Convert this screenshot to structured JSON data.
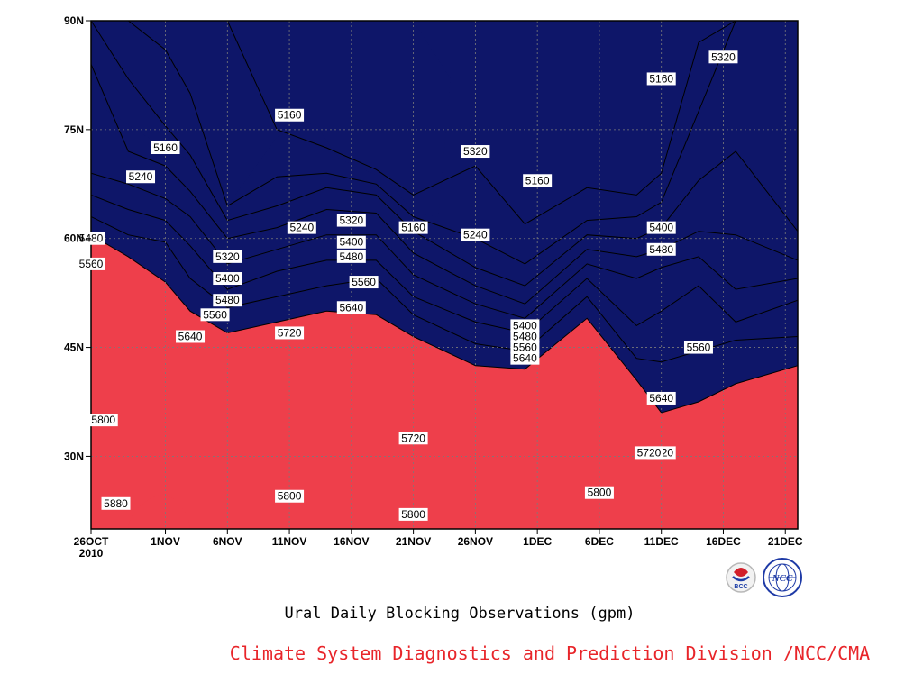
{
  "chart_data": {
    "type": "heatmap",
    "title": "Ural Daily Blocking Observations (gpm)",
    "credit": "Climate System Diagnostics and Prediction Division /NCC/CMA",
    "x_ticks": [
      "26OCT",
      "1NOV",
      "6NOV",
      "11NOV",
      "16NOV",
      "21NOV",
      "26NOV",
      "1DEC",
      "6DEC",
      "11DEC",
      "16DEC",
      "21DEC"
    ],
    "x_year": "2010",
    "y_ticks": [
      "30N",
      "45N",
      "60N",
      "75N",
      "90N"
    ],
    "xlim": [
      "2010-10-26",
      "2010-12-22"
    ],
    "ylim": [
      20,
      90
    ],
    "grid": true,
    "contour_levels": [
      5160,
      5240,
      5320,
      5400,
      5480,
      5560,
      5640,
      5720,
      5800,
      5880
    ],
    "level_colors": [
      "#0e1669",
      "#1a23e2",
      "#4d5ce8",
      "#5c8ce2",
      "#62bff7",
      "#fbfb7a",
      "#fde3a4",
      "#fca76b",
      "#fa7747",
      "#f56f7d",
      "#ee3f4b"
    ],
    "contour_labels": [
      "5160",
      "5160",
      "5240",
      "5480",
      "5560",
      "5320",
      "5400",
      "5480",
      "5560",
      "5640",
      "5720",
      "5800",
      "5880",
      "5160",
      "5240",
      "5320",
      "5400",
      "5480",
      "5560",
      "5640",
      "5720",
      "5800",
      "5160",
      "5240",
      "5320",
      "5400",
      "5480",
      "5560",
      "5640",
      "5720",
      "5800",
      "5160",
      "5320",
      "5400",
      "5480",
      "5560",
      "5640",
      "5720",
      "5800"
    ],
    "profiles": [
      {
        "date": "2010-10-26",
        "lat": [
          60.5,
          63.0,
          66.0,
          69.0,
          84.0,
          90.0,
          90.0,
          90.0,
          90.0,
          90.0
        ]
      },
      {
        "date": "2010-10-29",
        "lat": [
          57.5,
          60.5,
          64.0,
          67.5,
          72.0,
          82.0,
          90.0,
          90.0,
          90.0,
          90.0
        ]
      },
      {
        "date": "2010-11-01",
        "lat": [
          54.0,
          59.5,
          62.5,
          65.5,
          70.0,
          75.5,
          86.0,
          90.0,
          90.0,
          90.0
        ]
      },
      {
        "date": "2010-11-03",
        "lat": [
          50.0,
          54.5,
          59.0,
          63.0,
          66.5,
          71.5,
          80.0,
          90.0,
          90.0,
          90.0
        ]
      },
      {
        "date": "2010-11-06",
        "lat": [
          47.0,
          50.5,
          53.0,
          56.5,
          60.0,
          62.5,
          64.5,
          90.0,
          90.0,
          90.0
        ]
      },
      {
        "date": "2010-11-10",
        "lat": [
          48.5,
          52.0,
          55.5,
          58.5,
          61.5,
          64.5,
          68.5,
          75.0,
          90.0,
          90.0
        ]
      },
      {
        "date": "2010-11-14",
        "lat": [
          50.0,
          53.5,
          57.0,
          60.5,
          64.0,
          67.0,
          69.0,
          72.5,
          90.0,
          90.0
        ]
      },
      {
        "date": "2010-11-18",
        "lat": [
          49.5,
          54.5,
          57.0,
          60.5,
          63.5,
          66.0,
          67.5,
          69.5,
          90.0,
          90.0
        ]
      },
      {
        "date": "2010-11-21",
        "lat": [
          46.5,
          49.5,
          52.0,
          55.0,
          58.0,
          61.0,
          63.0,
          66.0,
          90.0,
          90.0
        ]
      },
      {
        "date": "2010-11-26",
        "lat": [
          42.5,
          45.5,
          48.5,
          51.0,
          53.5,
          56.0,
          60.0,
          70.0,
          90.0,
          90.0
        ]
      },
      {
        "date": "2010-11-30",
        "lat": [
          42.0,
          44.5,
          47.0,
          49.0,
          51.0,
          53.5,
          56.5,
          62.0,
          90.0,
          90.0
        ]
      },
      {
        "date": "2010-12-05",
        "lat": [
          49.0,
          52.0,
          54.5,
          56.5,
          58.5,
          60.5,
          62.5,
          67.0,
          90.0,
          90.0
        ]
      },
      {
        "date": "2010-12-09",
        "lat": [
          40.5,
          43.5,
          48.0,
          54.5,
          57.5,
          60.0,
          63.0,
          66.0,
          90.0,
          90.0
        ]
      },
      {
        "date": "2010-12-11",
        "lat": [
          36.0,
          43.0,
          50.0,
          56.0,
          58.5,
          61.5,
          65.0,
          69.0,
          90.0,
          90.0
        ]
      },
      {
        "date": "2010-12-14",
        "lat": [
          37.5,
          44.5,
          53.5,
          57.5,
          61.0,
          68.0,
          77.5,
          87.0,
          90.0,
          90.0
        ]
      },
      {
        "date": "2010-12-17",
        "lat": [
          40.0,
          46.0,
          48.5,
          53.0,
          60.5,
          72.0,
          90.0,
          90.0,
          90.0,
          90.0
        ]
      },
      {
        "date": "2010-12-22",
        "lat": [
          42.5,
          46.5,
          51.5,
          54.5,
          57.0,
          61.0,
          90.0,
          90.0,
          90.0,
          90.0
        ]
      }
    ]
  },
  "logos": {
    "left": "BCC",
    "right": "NCC"
  }
}
